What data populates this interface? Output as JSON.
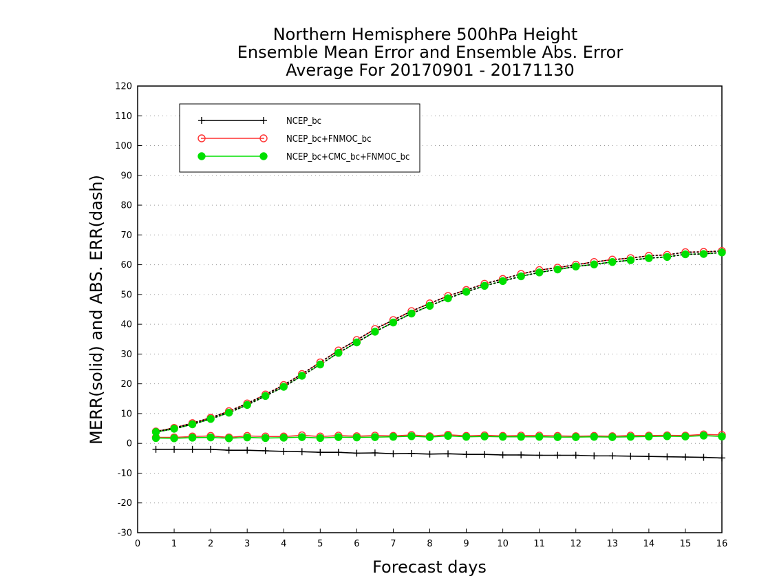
{
  "chart_data": {
    "type": "line",
    "title_lines": [
      "Northern Hemisphere 500hPa Height",
      "Ensemble Mean Error and Ensemble Abs. Error",
      "Average For 20170901 - 20171130"
    ],
    "xlabel": "Forecast days",
    "ylabel": "MERR(solid) and ABS. ERR(dash)",
    "xlim": [
      0,
      16
    ],
    "ylim": [
      -30,
      120
    ],
    "x_ticks": [
      0,
      1,
      2,
      3,
      4,
      5,
      6,
      7,
      8,
      9,
      10,
      11,
      12,
      13,
      14,
      15,
      16
    ],
    "y_ticks": [
      -30,
      -20,
      -10,
      0,
      10,
      20,
      30,
      40,
      50,
      60,
      70,
      80,
      90,
      100,
      110,
      120
    ],
    "grid": "horizontal dotted",
    "legend_position": "top-left",
    "x": [
      0.5,
      1,
      1.5,
      2,
      2.5,
      3,
      3.5,
      4,
      4.5,
      5,
      5.5,
      6,
      6.5,
      7,
      7.5,
      8,
      8.5,
      9,
      9.5,
      10,
      10.5,
      11,
      11.5,
      12,
      12.5,
      13,
      13.5,
      14,
      14.5,
      15,
      15.5,
      16
    ],
    "series": [
      {
        "name": "NCEP_bc",
        "color": "#000000",
        "marker": "plus",
        "merr": [
          -2.0,
          -2.0,
          -2.0,
          -2.0,
          -2.3,
          -2.3,
          -2.5,
          -2.7,
          -2.8,
          -3.0,
          -3.0,
          -3.3,
          -3.2,
          -3.5,
          -3.4,
          -3.6,
          -3.5,
          -3.7,
          -3.7,
          -3.9,
          -3.9,
          -4.0,
          -4.0,
          -4.0,
          -4.2,
          -4.2,
          -4.3,
          -4.4,
          -4.5,
          -4.6,
          -4.7,
          -4.9
        ],
        "abs_err": null
      },
      {
        "name": "NCEP_bc+FNMOC_bc",
        "color": "#ff3030",
        "marker": "open-circle",
        "merr": [
          2.0,
          2.0,
          2.3,
          2.5,
          2.0,
          2.5,
          2.3,
          2.3,
          2.7,
          2.3,
          2.6,
          2.4,
          2.6,
          2.5,
          2.8,
          2.4,
          2.9,
          2.5,
          2.7,
          2.5,
          2.6,
          2.6,
          2.5,
          2.4,
          2.5,
          2.4,
          2.6,
          2.6,
          2.7,
          2.6,
          3.0,
          2.8
        ],
        "abs_err": [
          4.0,
          5.2,
          6.8,
          8.6,
          10.8,
          13.4,
          16.4,
          19.6,
          23.3,
          27.2,
          31.2,
          34.7,
          38.4,
          41.4,
          44.4,
          47.0,
          49.5,
          51.5,
          53.6,
          55.2,
          56.9,
          58.2,
          59.0,
          60.0,
          60.9,
          61.7,
          62.2,
          63.0,
          63.3,
          64.2,
          64.3,
          64.6
        ]
      },
      {
        "name": "NCEP_bc+CMC_bc+FNMOC_bc",
        "color": "#00e000",
        "marker": "filled-circle",
        "merr": [
          1.8,
          1.7,
          1.9,
          2.0,
          1.7,
          2.0,
          1.8,
          1.9,
          2.1,
          1.8,
          2.1,
          2.0,
          2.1,
          2.2,
          2.4,
          2.1,
          2.5,
          2.2,
          2.3,
          2.2,
          2.2,
          2.2,
          2.1,
          2.1,
          2.2,
          2.1,
          2.2,
          2.3,
          2.4,
          2.3,
          2.6,
          2.3
        ],
        "abs_err": [
          3.8,
          4.9,
          6.4,
          8.2,
          10.3,
          12.9,
          15.9,
          19.0,
          22.7,
          26.5,
          30.4,
          33.9,
          37.5,
          40.6,
          43.6,
          46.2,
          48.7,
          50.9,
          52.9,
          54.5,
          56.1,
          57.4,
          58.4,
          59.4,
          60.1,
          60.9,
          61.5,
          62.2,
          62.6,
          63.5,
          63.6,
          64.1
        ]
      }
    ]
  }
}
